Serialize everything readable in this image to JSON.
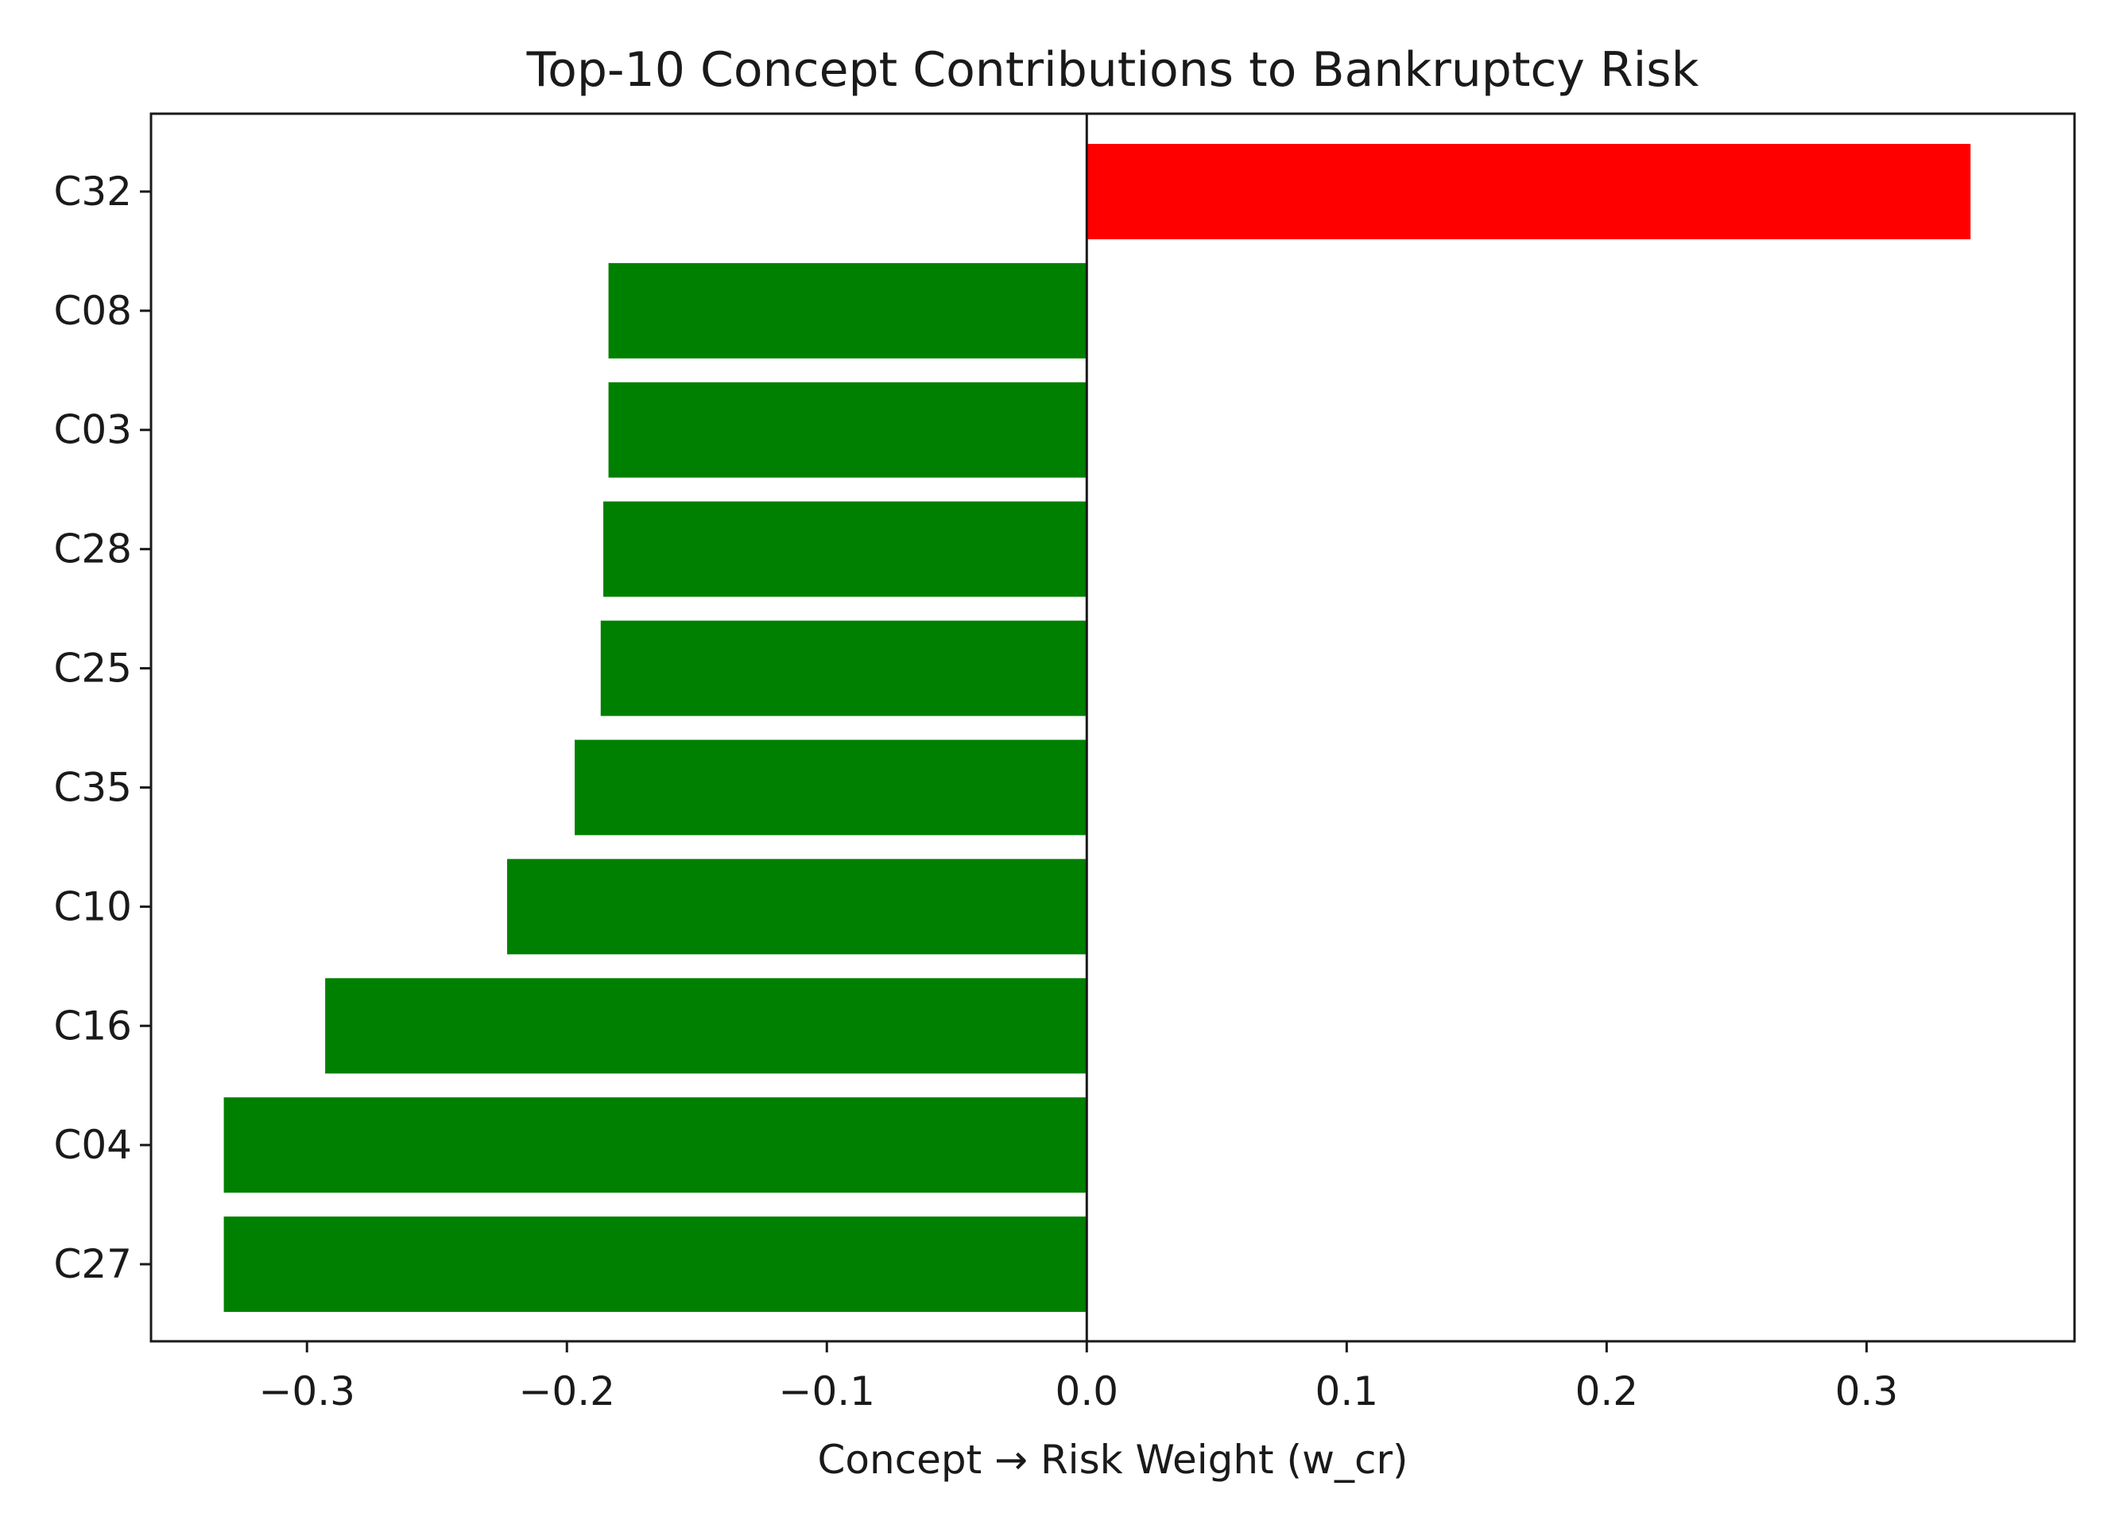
{
  "chart_data": {
    "type": "bar",
    "orientation": "horizontal",
    "title": "Top-10 Concept Contributions to Bankruptcy Risk",
    "xlabel": "Concept → Risk Weight (w_cr)",
    "ylabel": "",
    "xlim": [
      -0.36,
      0.38
    ],
    "xticks": [
      -0.3,
      -0.2,
      -0.1,
      0.0,
      0.1,
      0.2,
      0.3
    ],
    "xtick_labels": [
      "−0.3",
      "−0.2",
      "−0.1",
      "0.0",
      "0.1",
      "0.2",
      "0.3"
    ],
    "categories": [
      "C32",
      "C08",
      "C03",
      "C28",
      "C25",
      "C35",
      "C10",
      "C16",
      "C04",
      "C27"
    ],
    "values": [
      0.34,
      -0.184,
      -0.184,
      -0.186,
      -0.187,
      -0.197,
      -0.223,
      -0.293,
      -0.332,
      -0.332
    ],
    "colors": {
      "positive": "#ff0000",
      "negative": "#008000"
    },
    "zero_line": true,
    "grid": false,
    "legend": "none"
  }
}
